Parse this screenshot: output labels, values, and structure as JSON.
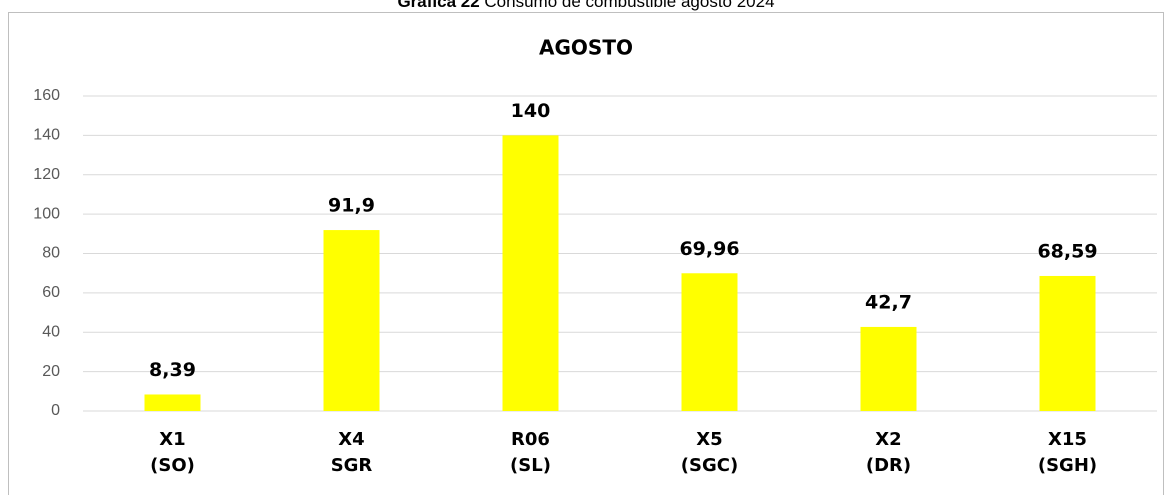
{
  "caption": {
    "label": "Gráfica 22",
    "text": "Consumo de combustible agosto 2024"
  },
  "chart_data": {
    "type": "bar",
    "title": "AGOSTO",
    "categories": [
      [
        "X1",
        "(SO)"
      ],
      [
        "X4",
        "SGR"
      ],
      [
        "R06",
        "(SL)"
      ],
      [
        "X5",
        "(SGC)"
      ],
      [
        "X2",
        "(DR)"
      ],
      [
        "X15",
        "(SGH)"
      ]
    ],
    "values": [
      8.39,
      91.9,
      140,
      69.96,
      42.7,
      68.59
    ],
    "value_labels": [
      "8,39",
      "91,9",
      "140",
      "69,96",
      "42,7",
      "68,59"
    ],
    "color": "#ffff00",
    "ylim": [
      0,
      160
    ],
    "yticks": [
      0,
      20,
      40,
      60,
      80,
      100,
      120,
      140,
      160
    ],
    "grid": true
  }
}
